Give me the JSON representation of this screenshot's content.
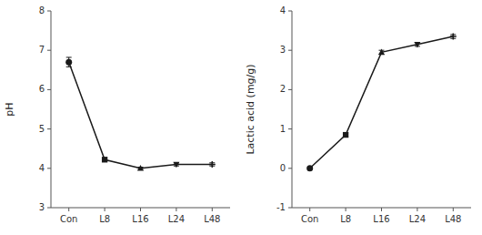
{
  "chart_data": [
    {
      "type": "line",
      "ylabel": "pH",
      "categories": [
        "Con",
        "L8",
        "L16",
        "L24",
        "L48"
      ],
      "values": [
        6.7,
        4.22,
        4.0,
        4.1,
        4.1
      ],
      "errors": [
        0.12,
        0.05,
        0.03,
        0.04,
        0.04
      ],
      "markers": [
        "circle",
        "square",
        "triangle-up",
        "triangle-down",
        "plus"
      ],
      "color": "#1a1a1a",
      "ylim": [
        3,
        8
      ],
      "yticks": [
        3,
        4,
        5,
        6,
        7,
        8
      ]
    },
    {
      "type": "line",
      "ylabel": "Lactic acid (mg/g)",
      "categories": [
        "Con",
        "L8",
        "L16",
        "L24",
        "L48"
      ],
      "values": [
        0.0,
        0.85,
        2.95,
        3.15,
        3.35
      ],
      "errors": [
        0.02,
        0.05,
        0.05,
        0.05,
        0.05
      ],
      "markers": [
        "circle",
        "square",
        "triangle-up",
        "triangle-down",
        "plus"
      ],
      "color": "#1a1a1a",
      "ylim": [
        -1,
        4
      ],
      "yticks": [
        -1,
        0,
        1,
        2,
        3,
        4
      ]
    }
  ]
}
